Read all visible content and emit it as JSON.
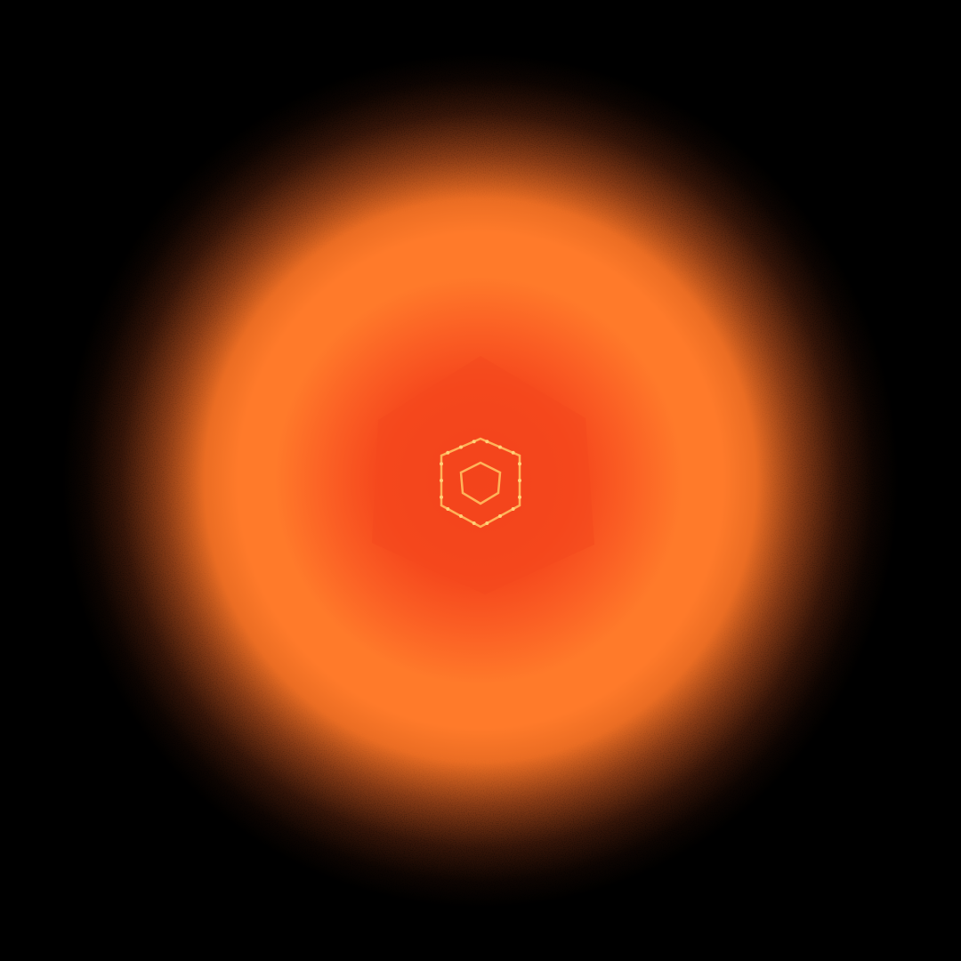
{
  "scene": {
    "background_color": "#000000",
    "glow_color": "#ff7a2a",
    "core_color": "#f23e1a",
    "emblem_line_color": "#ffb35a",
    "emblem_dot_color": "#ffd27a",
    "emblem": {
      "icon": "hexagon-shield-icon"
    }
  }
}
